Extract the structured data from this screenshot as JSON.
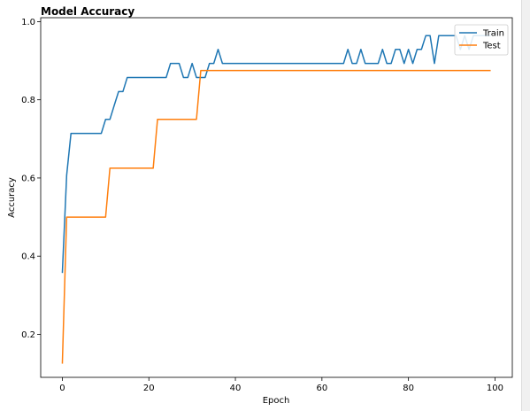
{
  "chart_data": {
    "type": "line",
    "title": "Model Accuracy",
    "xlabel": "Epoch",
    "ylabel": "Accuracy",
    "xlim": [
      -5,
      104
    ],
    "ylim": [
      0.09,
      1.01
    ],
    "xticks": [
      0,
      20,
      40,
      60,
      80,
      100
    ],
    "yticks": [
      0.2,
      0.4,
      0.6,
      0.8,
      1.0
    ],
    "xtick_labels": [
      "0",
      "20",
      "40",
      "60",
      "80",
      "100"
    ],
    "ytick_labels": [
      "0.2",
      "0.4",
      "0.6",
      "0.8",
      "1.0"
    ],
    "grid": false,
    "legend_position": "top-right",
    "series": [
      {
        "name": "Train",
        "color": "#1f77b4",
        "x": [
          0,
          1,
          2,
          3,
          4,
          5,
          6,
          7,
          8,
          9,
          10,
          11,
          12,
          13,
          14,
          15,
          16,
          17,
          18,
          19,
          20,
          21,
          22,
          23,
          24,
          25,
          26,
          27,
          28,
          29,
          30,
          31,
          32,
          33,
          34,
          35,
          36,
          37,
          38,
          39,
          40,
          41,
          42,
          43,
          44,
          45,
          46,
          47,
          48,
          49,
          50,
          51,
          52,
          53,
          54,
          55,
          56,
          57,
          58,
          59,
          60,
          61,
          62,
          63,
          64,
          65,
          66,
          67,
          68,
          69,
          70,
          71,
          72,
          73,
          74,
          75,
          76,
          77,
          78,
          79,
          80,
          81,
          82,
          83,
          84,
          85,
          86,
          87,
          88,
          89,
          90,
          91,
          92,
          93,
          94,
          95,
          96,
          97,
          98,
          99
        ],
        "values": [
          0.357,
          0.607,
          0.714,
          0.714,
          0.714,
          0.714,
          0.714,
          0.714,
          0.714,
          0.714,
          0.75,
          0.75,
          0.786,
          0.821,
          0.821,
          0.857,
          0.857,
          0.857,
          0.857,
          0.857,
          0.857,
          0.857,
          0.857,
          0.857,
          0.857,
          0.893,
          0.893,
          0.893,
          0.857,
          0.857,
          0.893,
          0.857,
          0.857,
          0.857,
          0.893,
          0.893,
          0.929,
          0.893,
          0.893,
          0.893,
          0.893,
          0.893,
          0.893,
          0.893,
          0.893,
          0.893,
          0.893,
          0.893,
          0.893,
          0.893,
          0.893,
          0.893,
          0.893,
          0.893,
          0.893,
          0.893,
          0.893,
          0.893,
          0.893,
          0.893,
          0.893,
          0.893,
          0.893,
          0.893,
          0.893,
          0.893,
          0.929,
          0.893,
          0.893,
          0.929,
          0.893,
          0.893,
          0.893,
          0.893,
          0.929,
          0.893,
          0.893,
          0.929,
          0.929,
          0.893,
          0.929,
          0.893,
          0.929,
          0.929,
          0.964,
          0.964,
          0.893,
          0.964,
          0.964,
          0.964,
          0.964,
          0.964,
          0.929,
          0.964,
          0.929,
          0.964,
          0.964,
          0.964,
          0.964,
          0.964
        ]
      },
      {
        "name": "Test",
        "color": "#ff7f0e",
        "x": [
          0,
          1,
          2,
          3,
          4,
          5,
          6,
          7,
          8,
          9,
          10,
          11,
          12,
          13,
          14,
          15,
          16,
          17,
          18,
          19,
          20,
          21,
          22,
          23,
          24,
          25,
          26,
          27,
          28,
          29,
          30,
          31,
          32,
          33,
          34,
          35,
          36,
          37,
          38,
          39,
          40,
          41,
          42,
          43,
          44,
          45,
          46,
          47,
          48,
          49,
          50,
          51,
          52,
          53,
          54,
          55,
          56,
          57,
          58,
          59,
          60,
          61,
          62,
          63,
          64,
          65,
          66,
          67,
          68,
          69,
          70,
          71,
          72,
          73,
          74,
          75,
          76,
          77,
          78,
          79,
          80,
          81,
          82,
          83,
          84,
          85,
          86,
          87,
          88,
          89,
          90,
          91,
          92,
          93,
          94,
          95,
          96,
          97,
          98,
          99
        ],
        "values": [
          0.125,
          0.5,
          0.5,
          0.5,
          0.5,
          0.5,
          0.5,
          0.5,
          0.5,
          0.5,
          0.5,
          0.625,
          0.625,
          0.625,
          0.625,
          0.625,
          0.625,
          0.625,
          0.625,
          0.625,
          0.625,
          0.625,
          0.75,
          0.75,
          0.75,
          0.75,
          0.75,
          0.75,
          0.75,
          0.75,
          0.75,
          0.75,
          0.875,
          0.875,
          0.875,
          0.875,
          0.875,
          0.875,
          0.875,
          0.875,
          0.875,
          0.875,
          0.875,
          0.875,
          0.875,
          0.875,
          0.875,
          0.875,
          0.875,
          0.875,
          0.875,
          0.875,
          0.875,
          0.875,
          0.875,
          0.875,
          0.875,
          0.875,
          0.875,
          0.875,
          0.875,
          0.875,
          0.875,
          0.875,
          0.875,
          0.875,
          0.875,
          0.875,
          0.875,
          0.875,
          0.875,
          0.875,
          0.875,
          0.875,
          0.875,
          0.875,
          0.875,
          0.875,
          0.875,
          0.875,
          0.875,
          0.875,
          0.875,
          0.875,
          0.875,
          0.875,
          0.875,
          0.875,
          0.875,
          0.875,
          0.875,
          0.875,
          0.875,
          0.875,
          0.875,
          0.875,
          0.875,
          0.875,
          0.875,
          0.875
        ]
      }
    ]
  }
}
